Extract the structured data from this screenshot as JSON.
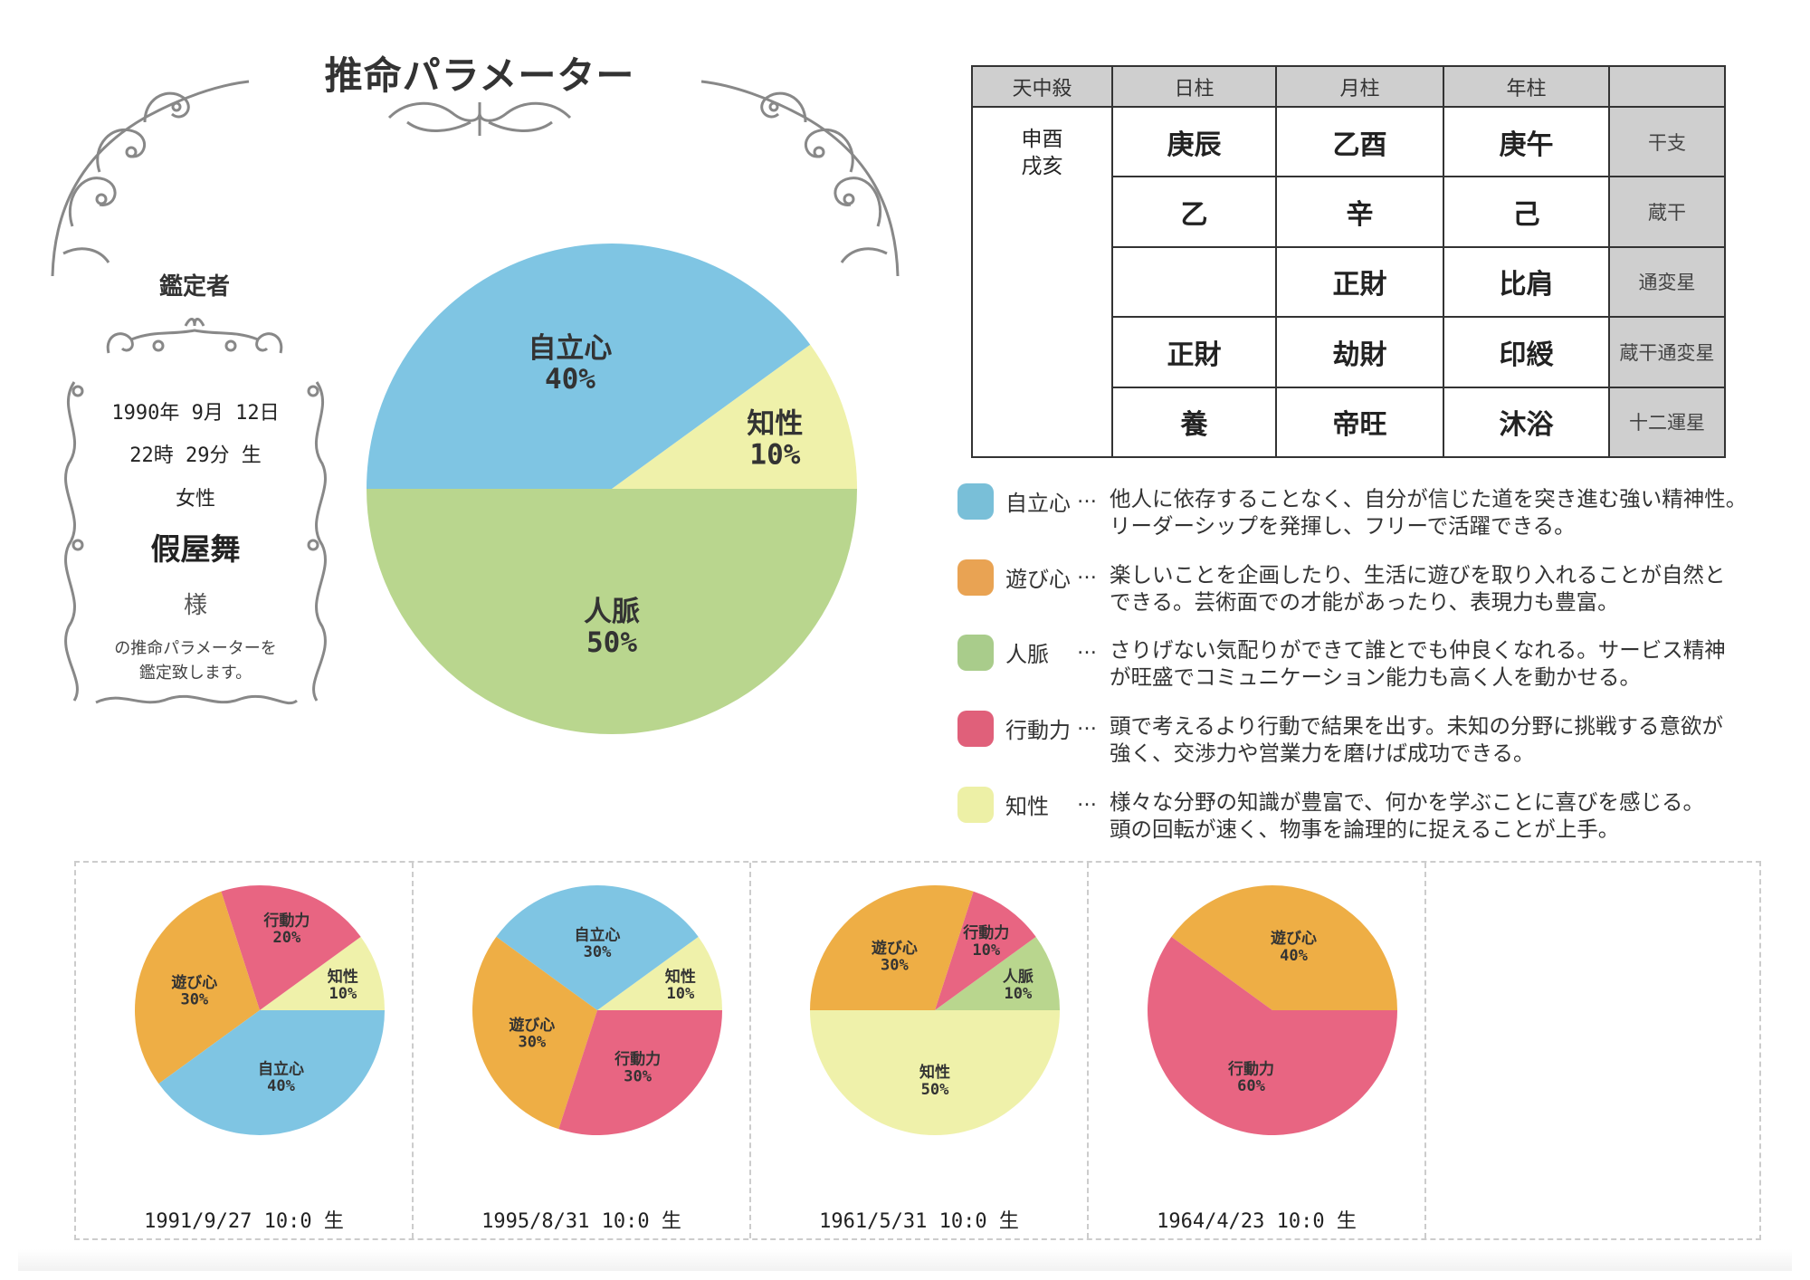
{
  "title": "推命パラメーター",
  "appraiser_label": "鑑定者",
  "profile": {
    "birth_date": "1990年 9月 12日",
    "birth_time": "22時 29分 生",
    "gender": "女性",
    "name": "假屋舞",
    "honorific": "様",
    "note_line1": "の推命パラメーターを",
    "note_line2": "鑑定致します。"
  },
  "colors": {
    "自立心": "#7fc5e3",
    "遊び心": "#eeae45",
    "人脈": "#b9d68e",
    "行動力": "#e86582",
    "知性": "#eff1aa"
  },
  "table": {
    "headers": [
      "天中殺",
      "日柱",
      "月柱",
      "年柱",
      ""
    ],
    "tenchusatsu": [
      "申酉",
      "戌亥"
    ],
    "rows": [
      {
        "label": "干支",
        "values": [
          "庚辰",
          "乙酉",
          "庚午"
        ]
      },
      {
        "label": "蔵干",
        "values": [
          "乙",
          "辛",
          "己"
        ]
      },
      {
        "label": "通変星",
        "values": [
          "",
          "正財",
          "比肩"
        ]
      },
      {
        "label": "蔵干通変星",
        "values": [
          "正財",
          "劫財",
          "印綬"
        ]
      },
      {
        "label": "十二運星",
        "values": [
          "養",
          "帝旺",
          "沐浴"
        ]
      }
    ]
  },
  "legend": [
    {
      "name": "自立心",
      "label": "自立心",
      "dots": "…",
      "color": "#79bfd8",
      "lines": [
        "他人に依存することなく、自分が信じた道を突き進む強い精神性。",
        "リーダーシップを発揮し、フリーで活躍できる。"
      ]
    },
    {
      "name": "遊び心",
      "label": "遊び心",
      "dots": "…",
      "color": "#e9a353",
      "lines": [
        "楽しいことを企画したり、生活に遊びを取り入れることが自然と",
        "できる。芸術面での才能があったり、表現力も豊富。"
      ]
    },
    {
      "name": "人脈",
      "label": "人脈",
      "dots": "…",
      "color": "#a9cc8b",
      "lines": [
        "さりげない気配りができて誰とでも仲良くなれる。サービス精神",
        "が旺盛でコミュニケーション能力も高く人を動かせる。"
      ]
    },
    {
      "name": "行動力",
      "label": "行動力",
      "dots": "…",
      "color": "#e0607a",
      "lines": [
        "頭で考えるより行動で結果を出す。未知の分野に挑戦する意欲が",
        "強く、交渉力や営業力を磨けば成功できる。"
      ]
    },
    {
      "name": "知性",
      "label": "知性",
      "dots": "…",
      "color": "#edf0a6",
      "lines": [
        "様々な分野の知識が豊富で、何かを学ぶことに喜びを感じる。",
        "頭の回転が速く、物事を論理的に捉えることが上手。"
      ]
    }
  ],
  "chart_data": [
    {
      "type": "pie",
      "title": "",
      "slices": [
        {
          "label": "知性",
          "value": 10,
          "text": "10%"
        },
        {
          "label": "自立心",
          "value": 40,
          "text": "40%"
        },
        {
          "label": "人脈",
          "value": 50,
          "text": "50%"
        }
      ],
      "start": "east",
      "direction": "counterclockwise"
    },
    {
      "type": "pie",
      "caption": "1991/9/27 10:0 生",
      "slices": [
        {
          "label": "知性",
          "value": 10,
          "text": "10%"
        },
        {
          "label": "行動力",
          "value": 20,
          "text": "20%"
        },
        {
          "label": "遊び心",
          "value": 30,
          "text": "30%"
        },
        {
          "label": "自立心",
          "value": 40,
          "text": "40%"
        }
      ]
    },
    {
      "type": "pie",
      "caption": "1995/8/31 10:0 生",
      "slices": [
        {
          "label": "知性",
          "value": 10,
          "text": "10%"
        },
        {
          "label": "自立心",
          "value": 30,
          "text": "30%"
        },
        {
          "label": "遊び心",
          "value": 30,
          "text": "30%"
        },
        {
          "label": "行動力",
          "value": 30,
          "text": "30%"
        }
      ]
    },
    {
      "type": "pie",
      "caption": "1961/5/31 10:0 生",
      "slices": [
        {
          "label": "人脈",
          "value": 10,
          "text": "10%"
        },
        {
          "label": "行動力",
          "value": 10,
          "text": "10%"
        },
        {
          "label": "遊び心",
          "value": 30,
          "text": "30%"
        },
        {
          "label": "知性",
          "value": 50,
          "text": "50%"
        }
      ]
    },
    {
      "type": "pie",
      "caption": "1964/4/23 10:0 生",
      "slices": [
        {
          "label": "遊び心",
          "value": 40,
          "text": "40%"
        },
        {
          "label": "行動力",
          "value": 60,
          "text": "60%"
        }
      ]
    }
  ]
}
